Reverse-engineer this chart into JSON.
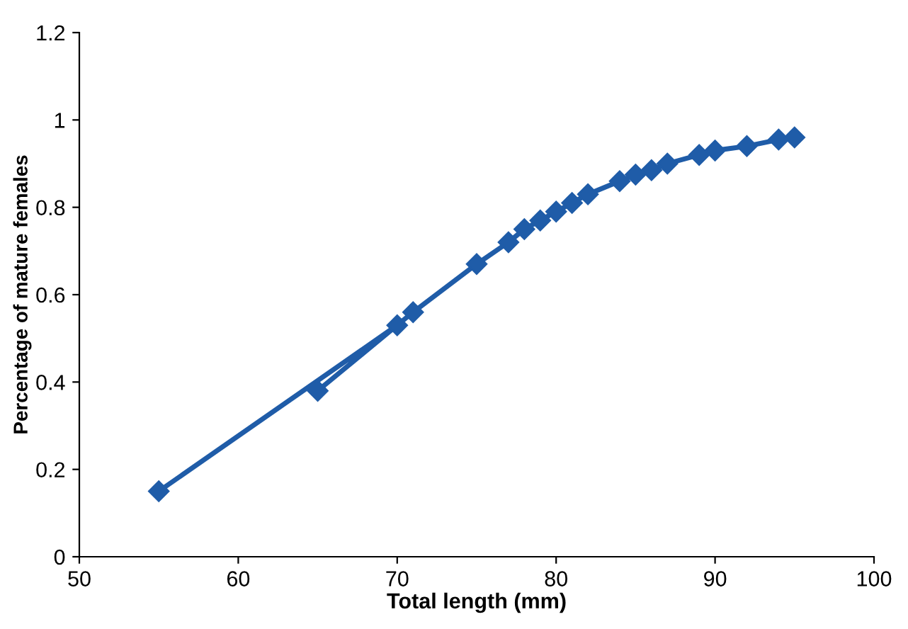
{
  "chart_data": {
    "type": "line",
    "xlabel": "Total length (mm)",
    "ylabel": "Percentage of mature females",
    "x": [
      55,
      70,
      65,
      71,
      75,
      77,
      78,
      79,
      80,
      81,
      82,
      84,
      85,
      86,
      87,
      89,
      90,
      92,
      94,
      95
    ],
    "series": [
      {
        "color": "#1f5ca8",
        "values": [
          0.15,
          0.53,
          0.38,
          0.56,
          0.67,
          0.72,
          0.75,
          0.77,
          0.79,
          0.81,
          0.83,
          0.86,
          0.875,
          0.885,
          0.9,
          0.92,
          0.93,
          0.94,
          0.955,
          0.96
        ]
      }
    ],
    "xlim": [
      50,
      100
    ],
    "ylim": [
      0,
      1.2
    ],
    "xticks": [
      50,
      60,
      70,
      80,
      90,
      100
    ],
    "yticks": [
      0,
      0.2,
      0.4,
      0.6,
      0.8,
      1,
      1.2
    ],
    "grid": false,
    "legend": false,
    "marker": "diamond",
    "line_style": "solid"
  }
}
